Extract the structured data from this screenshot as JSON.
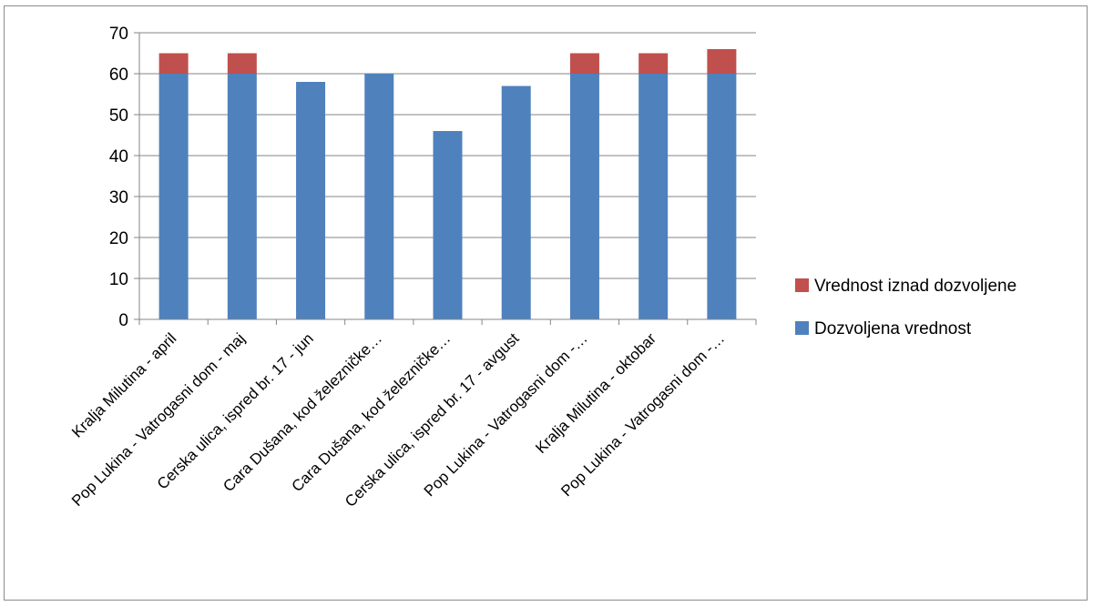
{
  "chart_data": {
    "type": "bar",
    "stacked": true,
    "categories": [
      "Kralja Milutina - april",
      "Pop Lukina - Vatrogasni dom - maj",
      "Cerska ulica, ispred br. 17 - jun",
      "Cara Dušana, kod železničke…",
      "Cara Dušana, kod železničke…",
      "Cerska ulica, ispred br. 17 - avgust",
      "Pop Lukina - Vatrogasni dom -…",
      "Kralja Milutina - oktobar",
      "Pop Lukina - Vatrogasni dom -…"
    ],
    "series": [
      {
        "name": "Dozvoljena vrednost",
        "color": "#4f81bd",
        "values": [
          60,
          60,
          58,
          60,
          46,
          57,
          60,
          60,
          60
        ]
      },
      {
        "name": "Vrednost iznad dozvoljene",
        "color": "#c0504d",
        "values": [
          5,
          5,
          0,
          0,
          0,
          0,
          5,
          5,
          6
        ]
      }
    ],
    "ylim": [
      0,
      70
    ],
    "yticks": [
      0,
      10,
      20,
      30,
      40,
      50,
      60,
      70
    ],
    "grid": true,
    "legend_position": "right",
    "title": "",
    "xlabel": "",
    "ylabel": ""
  }
}
